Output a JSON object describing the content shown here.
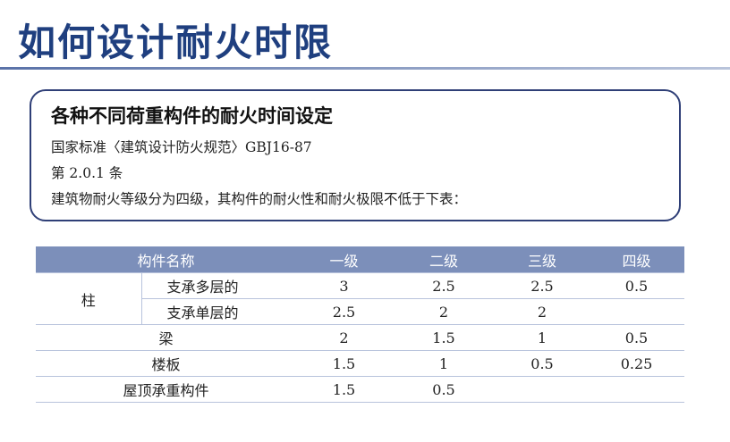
{
  "page": {
    "title": "如何设计耐火时限"
  },
  "info": {
    "heading": "各种不同荷重构件的耐火时间设定",
    "line1": "国家标准〈建筑设计防火规范〉GBJ16-87",
    "line2": "第 2.0.1 条",
    "line3": "建筑物耐火等级分为四级，其构件的耐火性和耐火极限不低于下表："
  },
  "table": {
    "headers": [
      "构件名称",
      "一级",
      "二级",
      "三级",
      "四级"
    ],
    "column_group": "柱",
    "rows": [
      {
        "name": "支承多层的",
        "values": [
          "3",
          "2.5",
          "2.5",
          "0.5"
        ]
      },
      {
        "name": "支承单层的",
        "values": [
          "2.5",
          "2",
          "2",
          ""
        ]
      },
      {
        "name": "梁",
        "values": [
          "2",
          "1.5",
          "1",
          "0.5"
        ]
      },
      {
        "name": "楼板",
        "values": [
          "1.5",
          "1",
          "0.5",
          "0.25"
        ]
      },
      {
        "name": "屋顶承重构件",
        "values": [
          "1.5",
          "0.5",
          "",
          ""
        ]
      }
    ]
  },
  "colors": {
    "title": "#1f3f7f",
    "header_bg": "#7c8fba",
    "box_border": "#2f3f77",
    "grid": "#b8c3dc"
  }
}
